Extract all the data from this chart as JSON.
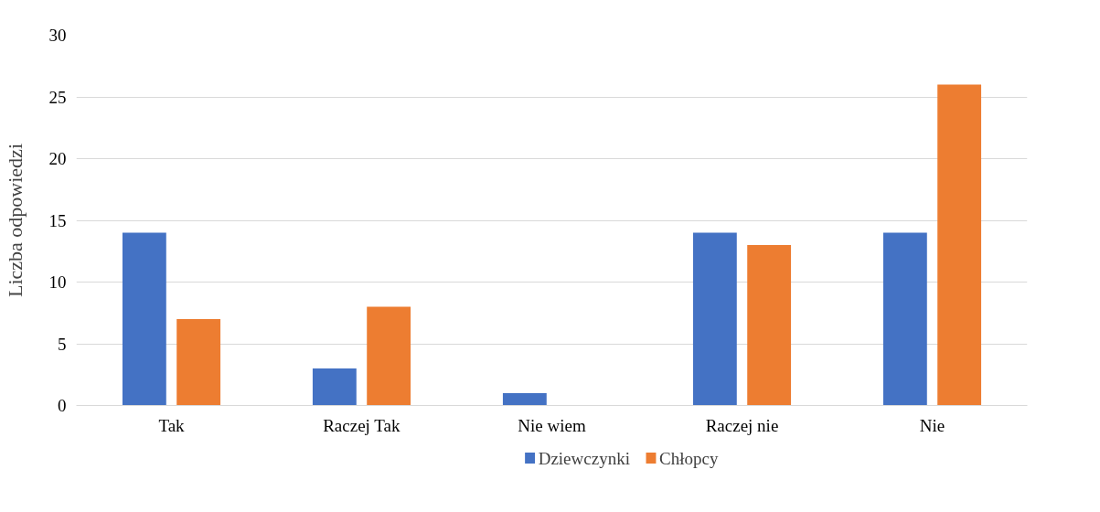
{
  "chart_data": {
    "type": "bar",
    "ylabel": "Liczba odpowiedzi",
    "categories": [
      "Tak",
      "Raczej Tak",
      "Nie wiem",
      "Raczej nie",
      "Nie"
    ],
    "series": [
      {
        "name": "Dziewczynki",
        "color": "#4472c4",
        "values": [
          14,
          3,
          1,
          14,
          14
        ]
      },
      {
        "name": "Chłopcy",
        "color": "#ed7d31",
        "values": [
          7,
          8,
          0,
          13,
          26
        ]
      }
    ],
    "ylim": [
      0,
      30
    ],
    "yticks": [
      0,
      5,
      10,
      15,
      20,
      25,
      30
    ],
    "grid": "y",
    "legend": "bottom"
  }
}
